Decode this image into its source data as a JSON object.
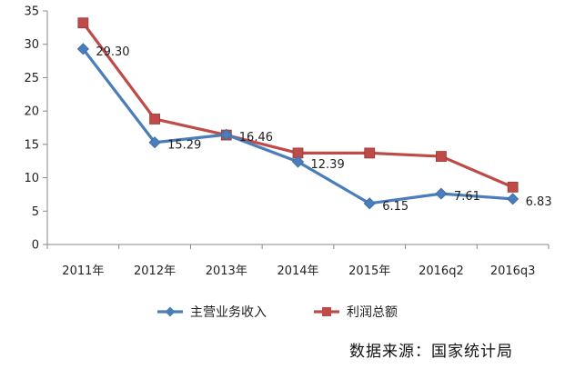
{
  "chart_data": {
    "type": "line",
    "categories": [
      "2011年",
      "2012年",
      "2013年",
      "2014年",
      "2015年",
      "2016q2",
      "2016q3"
    ],
    "ylim": [
      0,
      35
    ],
    "yticks": [
      0,
      5,
      10,
      15,
      20,
      25,
      30,
      35
    ],
    "grid": false,
    "legend_position": "bottom",
    "series": [
      {
        "name": "主营业务收入",
        "color": "#4a7ebb",
        "marker": "diamond",
        "values": [
          29.3,
          15.29,
          16.46,
          12.39,
          6.15,
          7.61,
          6.83
        ],
        "labels": [
          "29.30",
          "15.29",
          "16.46",
          "12.39",
          "6.15",
          "7.61",
          "6.83"
        ]
      },
      {
        "name": "利润总额",
        "color": "#be4b48",
        "marker": "square",
        "values": [
          33.2,
          18.8,
          16.4,
          13.7,
          13.7,
          13.2,
          8.6
        ]
      }
    ]
  },
  "source_text": "数据来源：国家统计局"
}
